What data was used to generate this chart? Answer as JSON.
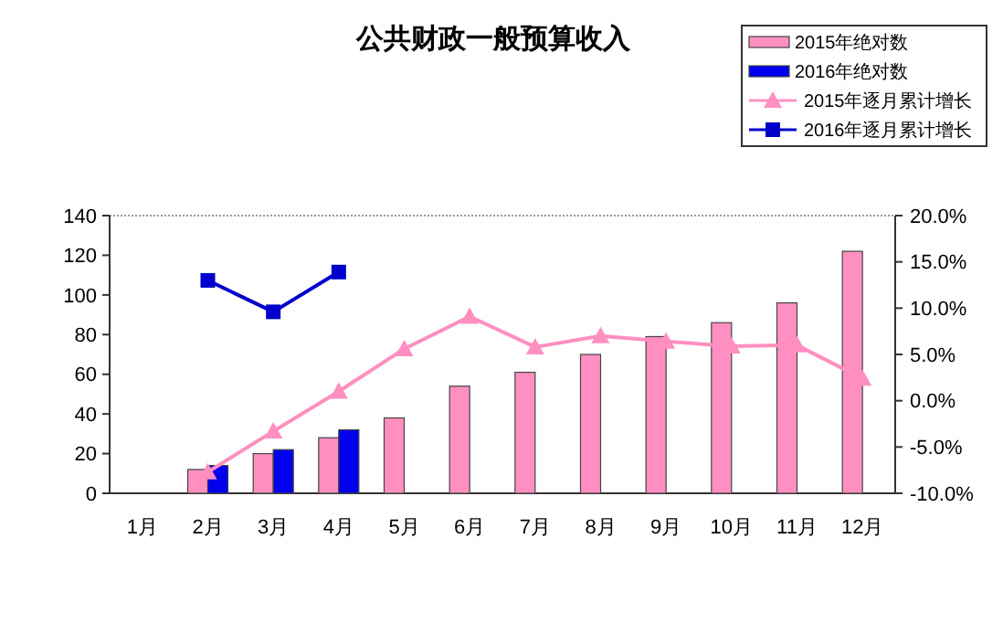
{
  "chart_data": {
    "type": "bar",
    "title": "公共财政一般预算收入",
    "categories": [
      "1月",
      "2月",
      "3月",
      "4月",
      "5月",
      "6月",
      "7月",
      "8月",
      "9月",
      "10月",
      "11月",
      "12月"
    ],
    "series": [
      {
        "name": "2015年绝对数",
        "color": "#ff8fc0",
        "values": [
          null,
          12,
          20,
          28,
          38,
          54,
          61,
          70,
          79,
          86,
          96,
          122
        ]
      },
      {
        "name": "2016年绝对数",
        "color": "#0000ee",
        "values": [
          null,
          14,
          22,
          32,
          null,
          null,
          null,
          null,
          null,
          null,
          null,
          null
        ]
      },
      {
        "name": "2015年逐月累计增长",
        "type": "line",
        "axis": "y2",
        "marker": "triangle",
        "color": "#ff8fc0",
        "values": [
          null,
          -7.7,
          -3.3,
          1.0,
          5.6,
          9.1,
          5.8,
          7.0,
          6.4,
          5.9,
          6.0,
          2.4
        ]
      },
      {
        "name": "2016年逐月累计增长",
        "type": "line",
        "axis": "y2",
        "marker": "square",
        "color": "#0000cc",
        "values": [
          null,
          13.0,
          9.6,
          13.9,
          null,
          null,
          null,
          null,
          null,
          null,
          null,
          null
        ]
      }
    ],
    "ylim": [
      0,
      140
    ],
    "yticks": [
      0,
      20,
      40,
      60,
      80,
      100,
      120,
      140
    ],
    "y2lim": [
      -10,
      20
    ],
    "y2ticks": [
      {
        "value": -10,
        "label": "-10.0%"
      },
      {
        "value": -5,
        "label": "-5.0%"
      },
      {
        "value": 0,
        "label": "0.0%"
      },
      {
        "value": 5,
        "label": "5.0%"
      },
      {
        "value": 10,
        "label": "10.0%"
      },
      {
        "value": 15,
        "label": "15.0%"
      },
      {
        "value": 20,
        "label": "20.0%"
      }
    ],
    "legend": "top right",
    "grid": false
  }
}
